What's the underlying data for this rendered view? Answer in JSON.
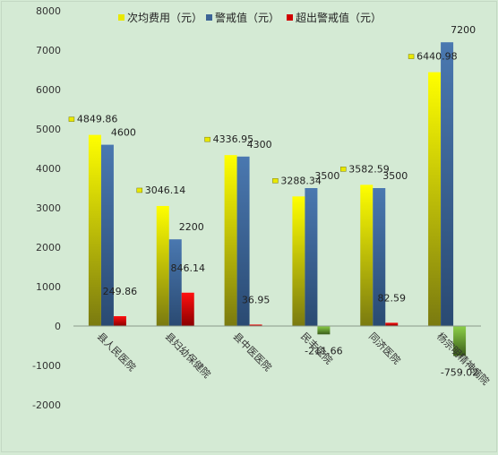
{
  "chart_data": {
    "type": "bar",
    "title": "",
    "xlabel": "",
    "ylabel": "",
    "ylim": [
      -2000,
      8000
    ],
    "yticks": [
      -2000,
      -1000,
      0,
      1000,
      2000,
      3000,
      4000,
      5000,
      6000,
      7000,
      8000
    ],
    "grid": false,
    "legend_position": "top-right",
    "categories": [
      "县人民医院",
      "县妇幼保健院",
      "县中医医院",
      "民丰医院",
      "同济医院",
      "杨宗明精神病院"
    ],
    "series": [
      {
        "name": "次均费用（元）",
        "color": "#e8e800",
        "values": [
          4849.86,
          3046.14,
          4336.95,
          3288.34,
          3582.59,
          6440.98
        ],
        "labels": [
          "4849.86",
          "3046.14",
          "4336.95",
          "3288.34",
          "3582.59",
          "6440.98"
        ]
      },
      {
        "name": "警戒值（元）",
        "color": "#3c6496",
        "values": [
          4600,
          2200,
          4300,
          3500,
          3500,
          7200
        ],
        "labels": [
          "4600",
          "2200",
          "4300",
          "3500",
          "3500",
          "7200"
        ]
      },
      {
        "name": "超出警戒值（元）",
        "color": "#d00000",
        "negative_color": "#5f8a2a",
        "values": [
          249.86,
          846.14,
          36.95,
          -211.66,
          82.59,
          -759.02
        ],
        "labels": [
          "249.86",
          "846.14",
          "36.95",
          "-211.66",
          "82.59",
          "-759.02"
        ]
      }
    ]
  }
}
